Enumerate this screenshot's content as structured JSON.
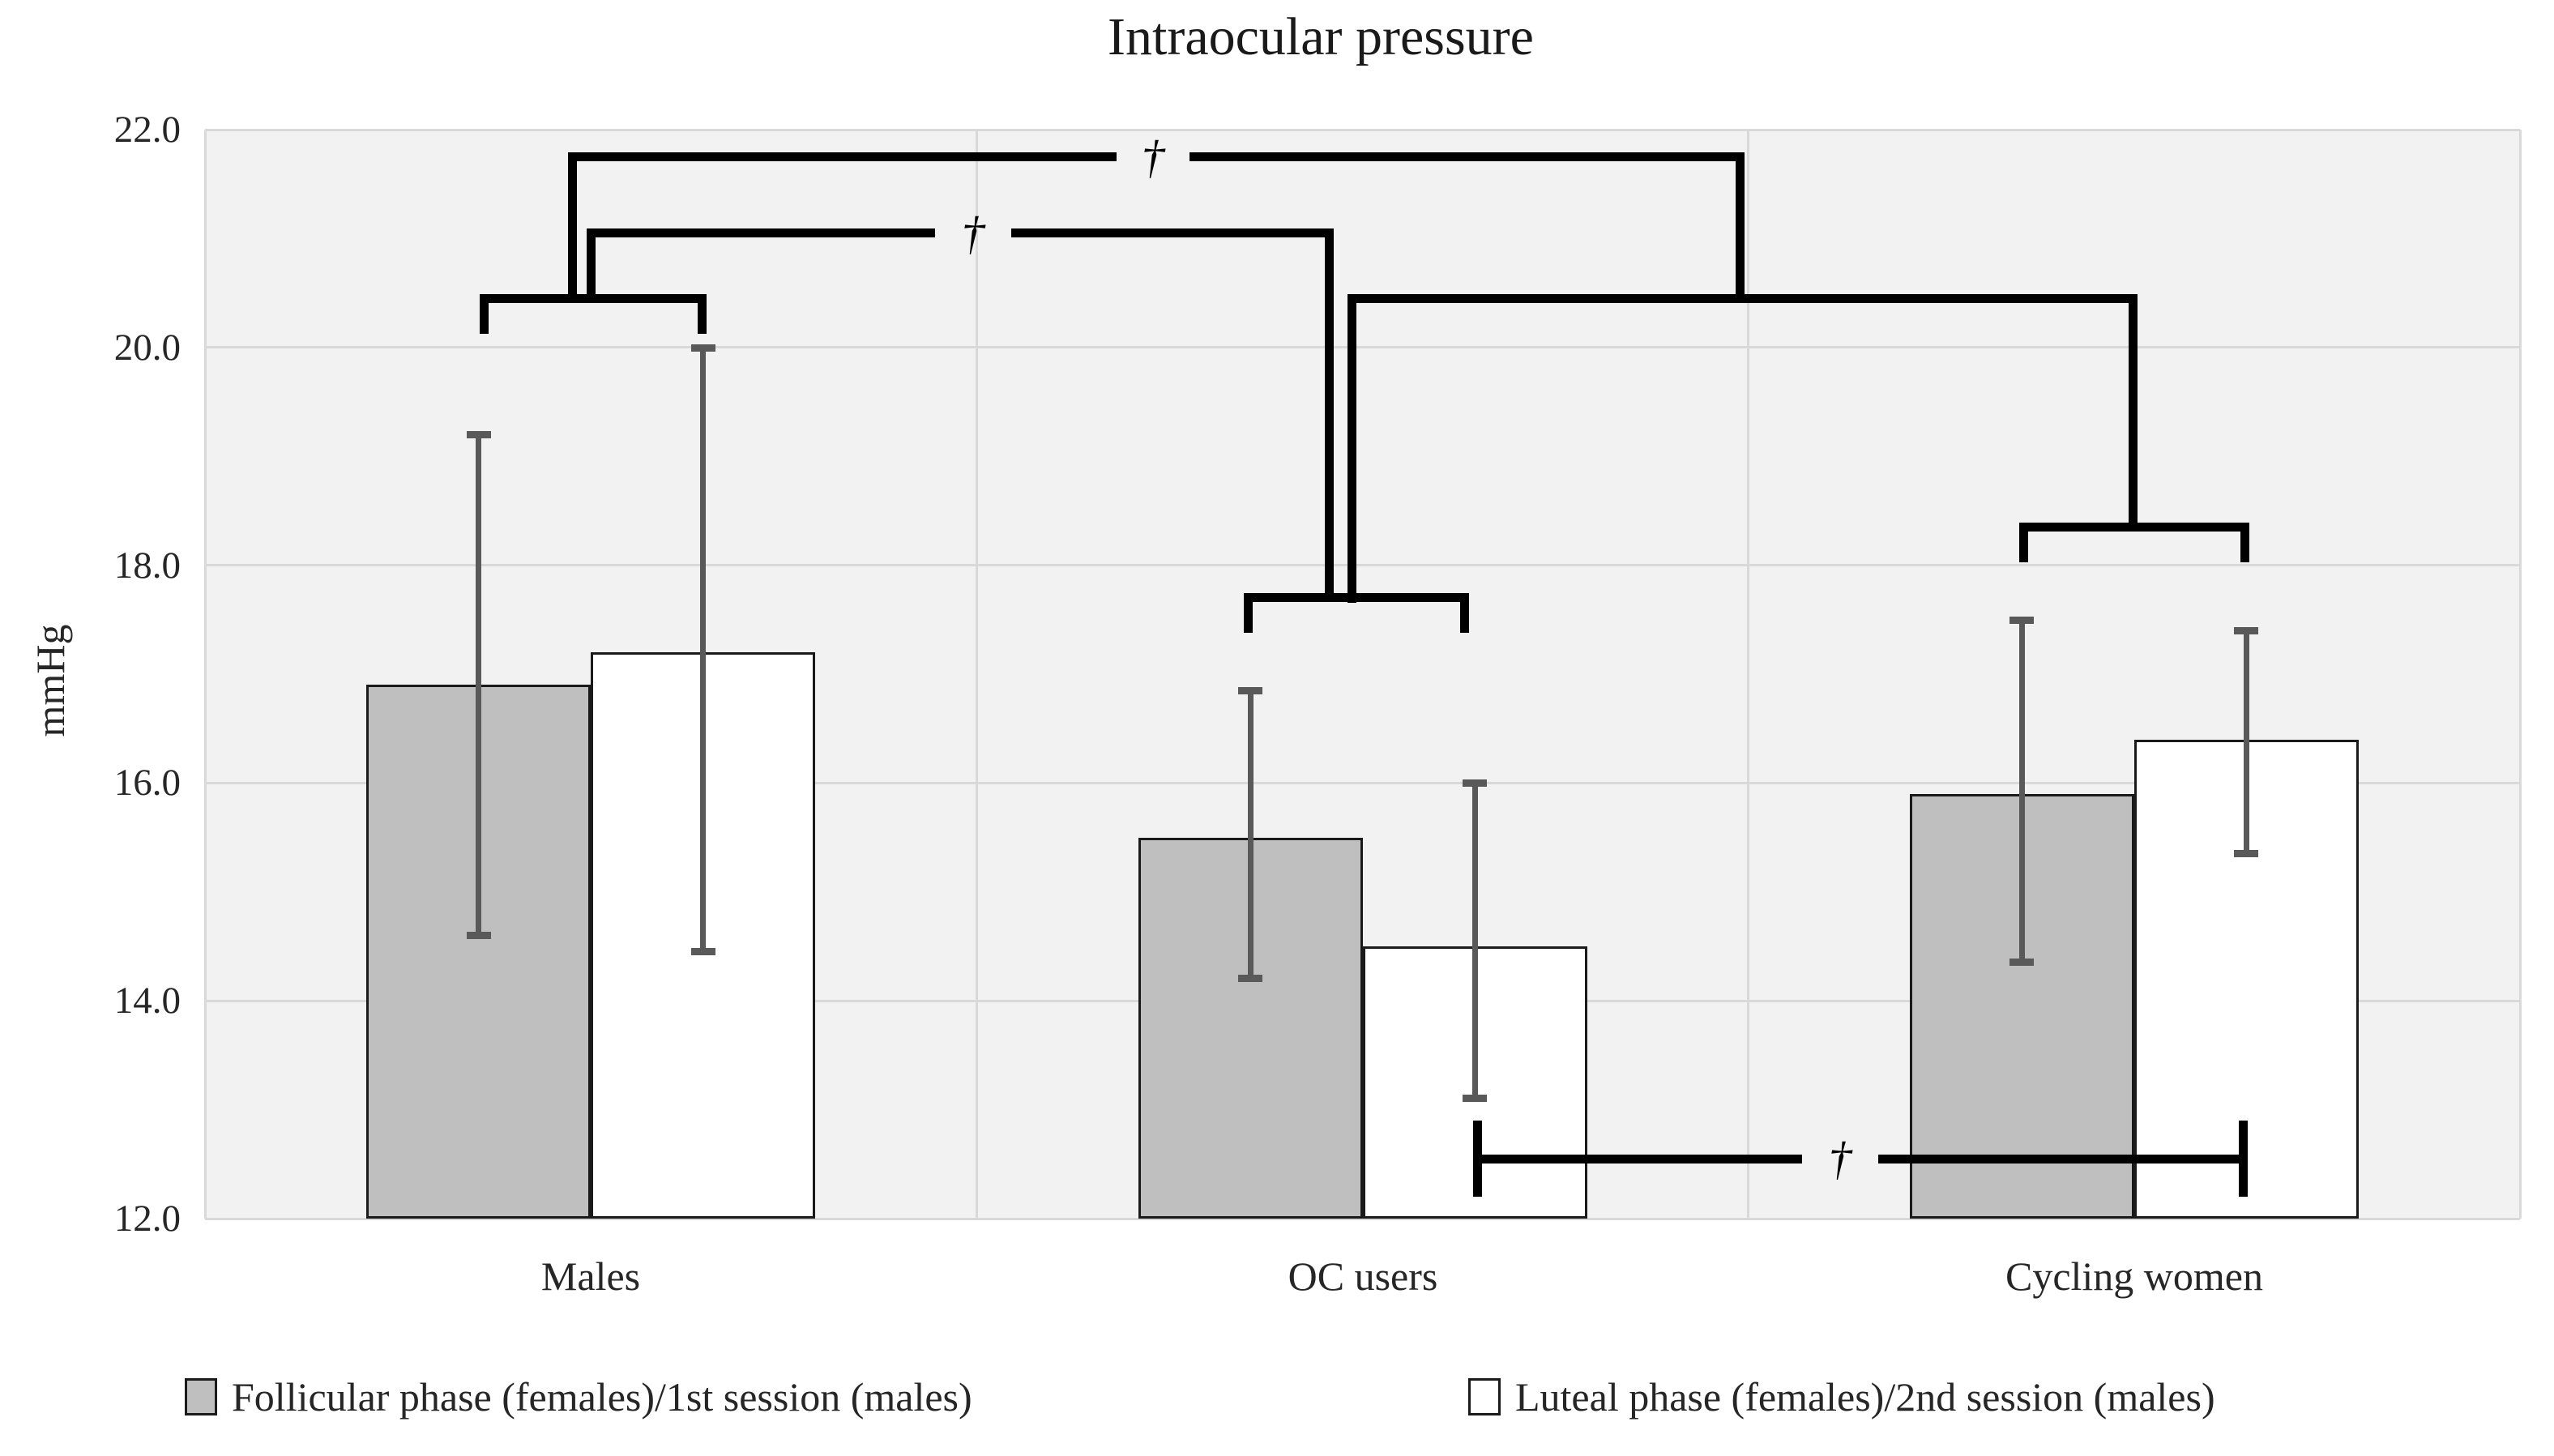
{
  "chart_data": {
    "type": "bar",
    "title": "Intraocular pressure",
    "ylabel": "mmHg",
    "ylim": [
      12,
      22
    ],
    "grid": true,
    "legend_position": "bottom",
    "plot_background": "#f2f2f2",
    "yticks": [
      {
        "label": "22.0",
        "value": 22
      },
      {
        "label": "20.0",
        "value": 20
      },
      {
        "label": "18.0",
        "value": 18
      },
      {
        "label": "16.0",
        "value": 16
      },
      {
        "label": "14.0",
        "value": 14
      },
      {
        "label": "12.0",
        "value": 12
      }
    ],
    "categories": [
      "Males",
      "OC users",
      "Cycling women"
    ],
    "series": [
      {
        "name": "Follicular phase (females)/1st session (males)",
        "fill": "#bfbfbf",
        "values": [
          16.9,
          15.5,
          15.9
        ],
        "err_high": [
          19.2,
          16.85,
          17.5
        ],
        "err_low": [
          14.6,
          14.2,
          14.35
        ]
      },
      {
        "name": "Luteal phase (females)/2nd session (males)",
        "fill": "#ffffff",
        "values": [
          17.2,
          14.5,
          16.4
        ],
        "err_high": [
          20.0,
          16.0,
          17.4
        ],
        "err_low": [
          14.45,
          13.1,
          15.35
        ]
      }
    ],
    "significance_symbol": "†",
    "annotations": {
      "pair_brackets": [
        {
          "x1": 597,
          "x2": 866,
          "y": 20.45,
          "tick": 0.28
        },
        {
          "x1": 1540,
          "x2": 1807,
          "y": 17.7,
          "tick": 0.28
        },
        {
          "x1": 2497,
          "x2": 2770,
          "y": 18.35,
          "tick": 0.28
        }
      ],
      "connector_lines": [
        {
          "x1": 706,
          "x2": 2147,
          "y": 21.75,
          "gap_x1": 1378,
          "gap_x2": 1468,
          "symbol_x": 1423,
          "symbol": "†"
        },
        {
          "x1": 729,
          "x2": 1640,
          "y": 21.05,
          "gap_x1": 1154,
          "gap_x2": 1248,
          "symbol_x": 1201,
          "symbol": "†"
        },
        {
          "x1": 1668,
          "x2": 2632,
          "y": 20.45
        }
      ],
      "stems": [
        {
          "x": 706,
          "y1": 21.75,
          "y2": 20.45
        },
        {
          "x": 2147,
          "y1": 21.75,
          "y2": 20.45
        },
        {
          "x": 729,
          "y1": 21.05,
          "y2": 20.45
        },
        {
          "x": 1640,
          "y1": 21.05,
          "y2": 17.7
        },
        {
          "x": 1668,
          "y1": 20.45,
          "y2": 17.7
        },
        {
          "x": 2632,
          "y1": 20.45,
          "y2": 18.35
        }
      ],
      "range_bar": {
        "x1": 1823,
        "x2": 2768,
        "y": 12.55,
        "bar_half": 0.35,
        "gap_x1": 2224,
        "gap_x2": 2318,
        "symbol_x": 2271,
        "symbol": "†"
      }
    }
  },
  "colors": {
    "bar_border": "#1a1a1a",
    "error_bar": "#595959",
    "gridline": "#d9d9d9",
    "annotation": "#000000",
    "text": "#262626"
  }
}
